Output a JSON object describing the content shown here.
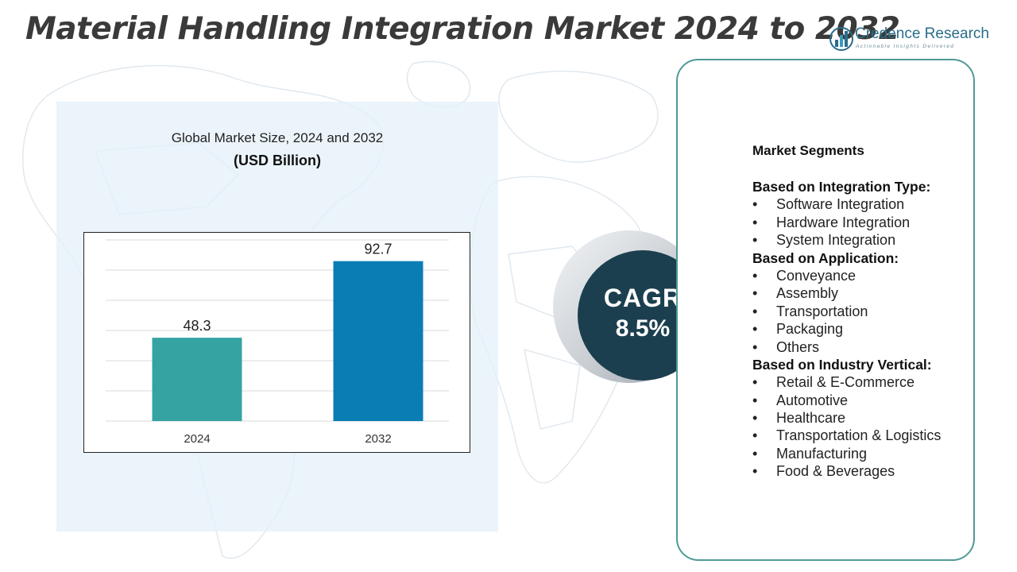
{
  "header": {
    "title": "Material Handling Integration Market 2024 to 2032"
  },
  "logo": {
    "name": "Credence Research",
    "tagline": "Actionable Insights Delivered",
    "icon": "bar-chart-logo-icon"
  },
  "colors": {
    "bar_2024": "#35a3a2",
    "bar_2032": "#0a7db5",
    "cagr_circle": "#1c3f4f",
    "segment_border": "#4f9a96",
    "chart_panel": "#e4f0f8"
  },
  "chart_data": {
    "type": "bar",
    "title": "Global Market Size, 2024 and 2032",
    "ylabel": "(USD Billion)",
    "xlabel": "",
    "categories": [
      "2024",
      "2032"
    ],
    "values": [
      48.3,
      92.7
    ],
    "data_labels": [
      "48.3",
      "92.7"
    ],
    "ylim": [
      0,
      105
    ],
    "grid": true,
    "legend": "none"
  },
  "cagr": {
    "label": "CAGR",
    "value": "8.5%"
  },
  "segments": {
    "heading": "Market Segments",
    "groups": [
      {
        "title": "Based on Integration Type:",
        "items": [
          "Software Integration",
          "Hardware Integration",
          "System Integration"
        ]
      },
      {
        "title": "Based on Application:",
        "items": [
          "Conveyance",
          "Assembly",
          "Transportation",
          "Packaging",
          "Others"
        ]
      },
      {
        "title": "Based on Industry Vertical:",
        "items": [
          "Retail & E-Commerce",
          "Automotive",
          "Healthcare",
          "Transportation & Logistics",
          "Manufacturing",
          "Food & Beverages"
        ]
      }
    ]
  }
}
